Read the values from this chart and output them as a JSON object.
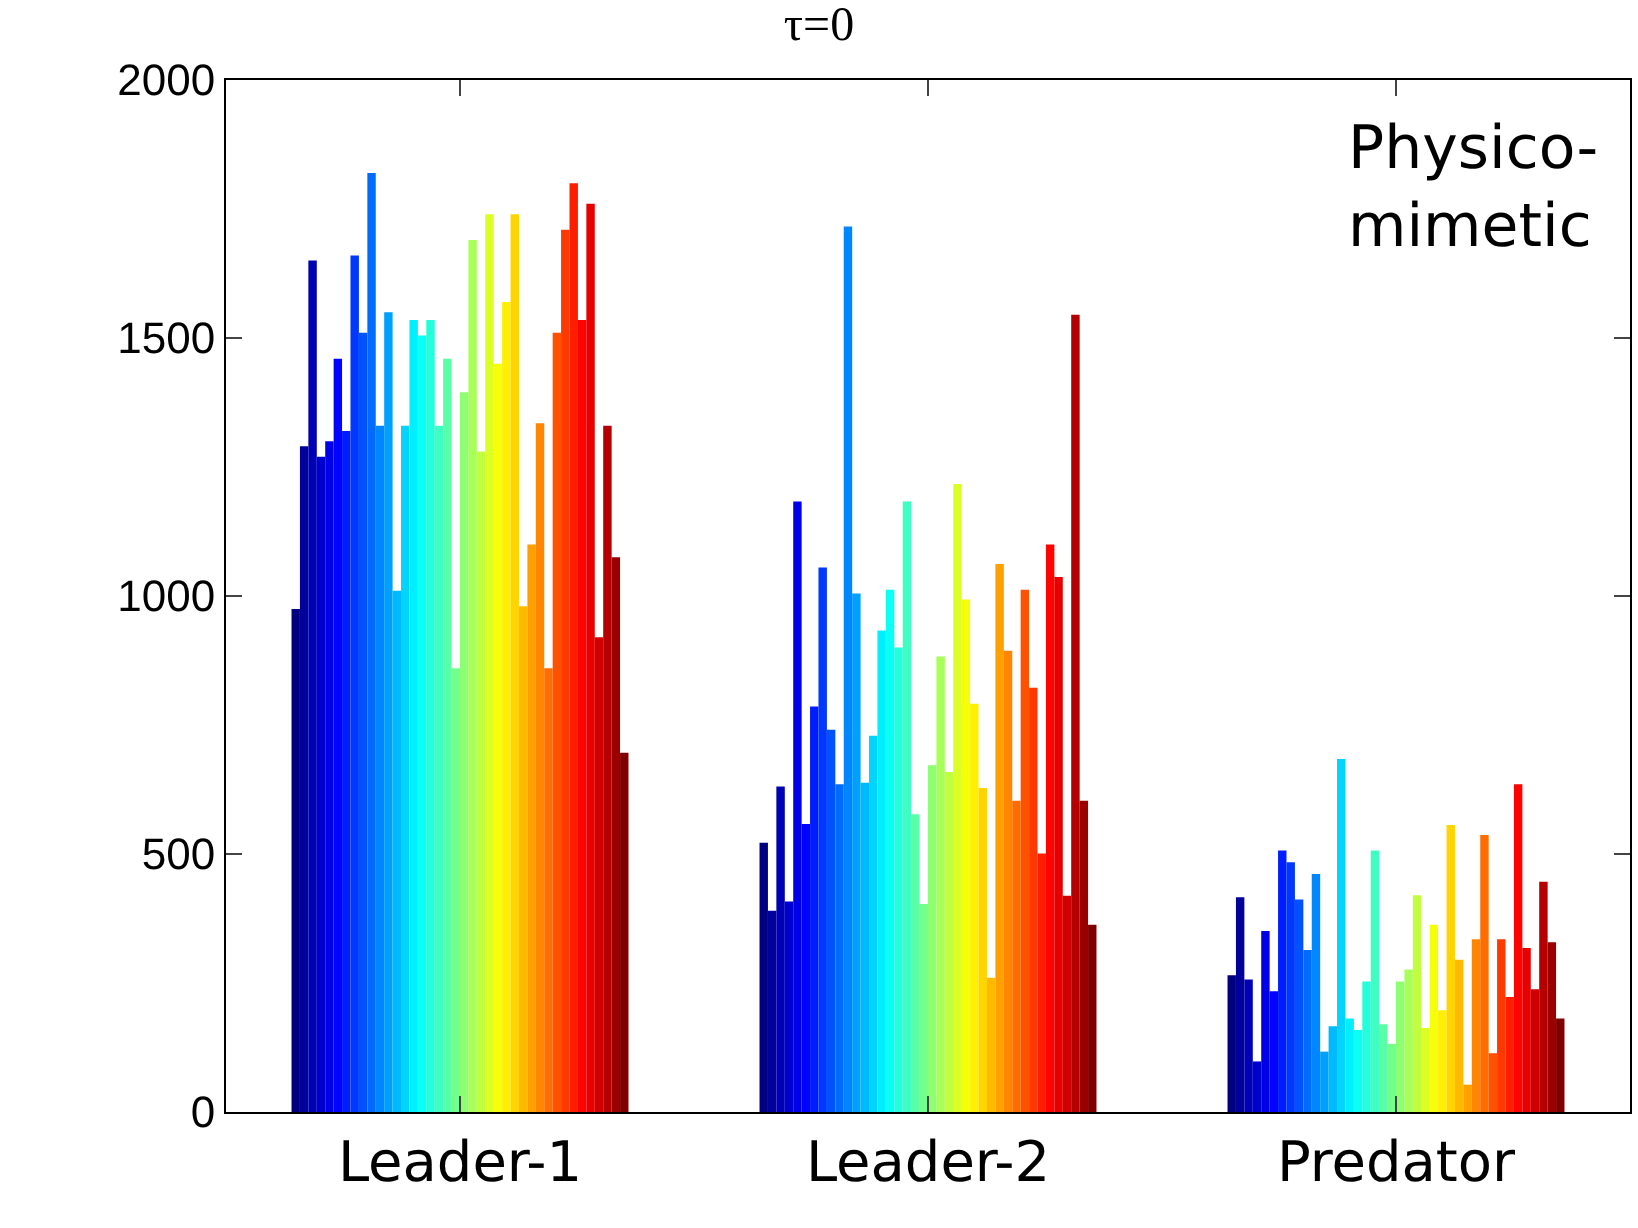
{
  "chart_data": {
    "type": "bar",
    "title": "τ=0",
    "categories": [
      "Leader-1",
      "Leader-2",
      "Predator"
    ],
    "ylim": [
      0,
      2000
    ],
    "yticks": [
      0,
      500,
      1000,
      1500,
      2000
    ],
    "annotations": [
      "Physico-\nmimetic"
    ],
    "series": [
      {
        "color": "#000080",
        "values": [
          975,
          522,
          265
        ]
      },
      {
        "color": "#00009a",
        "values": [
          1290,
          390,
          416
        ]
      },
      {
        "color": "#0000b4",
        "values": [
          1650,
          631,
          257
        ]
      },
      {
        "color": "#0000ce",
        "values": [
          1270,
          408,
          98
        ]
      },
      {
        "color": "#0000e8",
        "values": [
          1300,
          1183,
          351
        ]
      },
      {
        "color": "#0003ff",
        "values": [
          1460,
          558,
          234
        ]
      },
      {
        "color": "#001dff",
        "values": [
          1320,
          786,
          507
        ]
      },
      {
        "color": "#0038ff",
        "values": [
          1660,
          1055,
          484
        ]
      },
      {
        "color": "#0052ff",
        "values": [
          1510,
          741,
          412
        ]
      },
      {
        "color": "#006cff",
        "values": [
          1820,
          635,
          314
        ]
      },
      {
        "color": "#0086ff",
        "values": [
          1330,
          1716,
          461
        ]
      },
      {
        "color": "#00a0ff",
        "values": [
          1550,
          1005,
          117
        ]
      },
      {
        "color": "#00baff",
        "values": [
          1010,
          638,
          166
        ]
      },
      {
        "color": "#00d4ff",
        "values": [
          1330,
          729,
          684
        ]
      },
      {
        "color": "#00efff",
        "values": [
          1535,
          933,
          181
        ]
      },
      {
        "color": "#0afff5",
        "values": [
          1505,
          1012,
          159
        ]
      },
      {
        "color": "#24ffdb",
        "values": [
          1535,
          900,
          253
        ]
      },
      {
        "color": "#3effc1",
        "values": [
          1330,
          1183,
          507
        ]
      },
      {
        "color": "#58ffa7",
        "values": [
          1460,
          577,
          170
        ]
      },
      {
        "color": "#73ff8c",
        "values": [
          860,
          403,
          132
        ]
      },
      {
        "color": "#8cff73",
        "values": [
          1395,
          672,
          253
        ]
      },
      {
        "color": "#a7ff58",
        "values": [
          1690,
          883,
          276
        ]
      },
      {
        "color": "#c1ff3e",
        "values": [
          1280,
          659,
          420
        ]
      },
      {
        "color": "#dbff24",
        "values": [
          1740,
          1217,
          163
        ]
      },
      {
        "color": "#f5ff0a",
        "values": [
          1450,
          993,
          363
        ]
      },
      {
        "color": "#ffef00",
        "values": [
          1570,
          791,
          197
        ]
      },
      {
        "color": "#ffd400",
        "values": [
          1740,
          628,
          556
        ]
      },
      {
        "color": "#ffba00",
        "values": [
          980,
          260,
          295
        ]
      },
      {
        "color": "#ffa000",
        "values": [
          1100,
          1062,
          53
        ]
      },
      {
        "color": "#ff8600",
        "values": [
          1335,
          894,
          335
        ]
      },
      {
        "color": "#ff6c00",
        "values": [
          860,
          603,
          537
        ]
      },
      {
        "color": "#ff5200",
        "values": [
          1510,
          1012,
          114
        ]
      },
      {
        "color": "#ff3800",
        "values": [
          1710,
          822,
          335
        ]
      },
      {
        "color": "#ff1d00",
        "values": [
          1800,
          501,
          223
        ]
      },
      {
        "color": "#ff0300",
        "values": [
          1535,
          1100,
          635
        ]
      },
      {
        "color": "#e80000",
        "values": [
          1760,
          1037,
          318
        ]
      },
      {
        "color": "#ce0000",
        "values": [
          920,
          419,
          238
        ]
      },
      {
        "color": "#b40000",
        "values": [
          1330,
          1545,
          446
        ]
      },
      {
        "color": "#9a0000",
        "values": [
          1075,
          603,
          329
        ]
      },
      {
        "color": "#800000",
        "values": [
          696,
          363,
          181
        ]
      }
    ]
  }
}
